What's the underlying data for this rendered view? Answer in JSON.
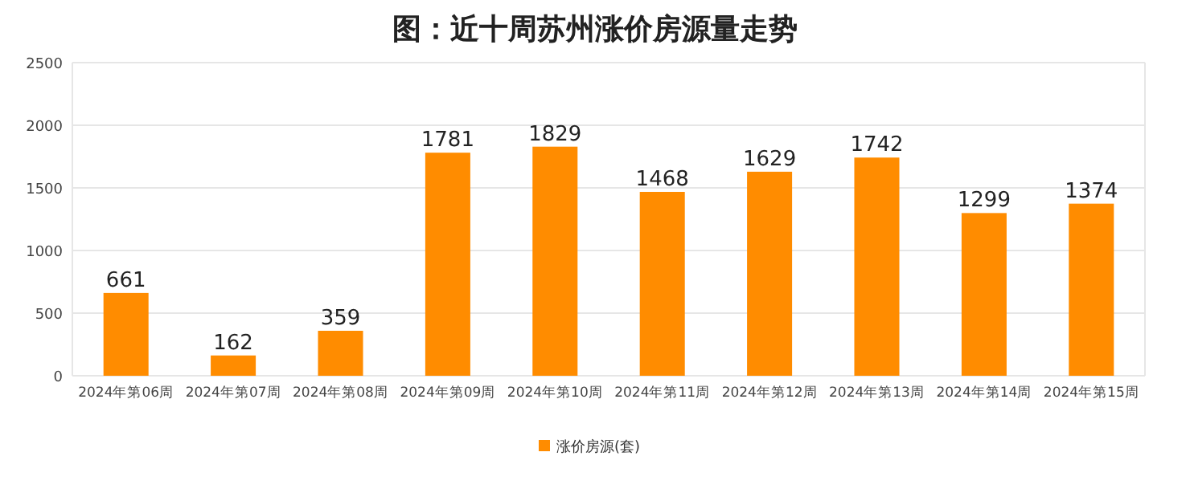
{
  "chart_data": {
    "type": "bar",
    "title": "图：近十周苏州涨价房源量走势",
    "categories": [
      "2024年第06周",
      "2024年第07周",
      "2024年第08周",
      "2024年第09周",
      "2024年第10周",
      "2024年第11周",
      "2024年第12周",
      "2024年第13周",
      "2024年第14周",
      "2024年第15周"
    ],
    "series": [
      {
        "name": "涨价房源(套)",
        "color": "#ff8c00",
        "values": [
          661,
          162,
          359,
          1781,
          1829,
          1468,
          1629,
          1742,
          1299,
          1374
        ]
      }
    ],
    "ylim": [
      0,
      2500
    ],
    "yticks": [
      0,
      500,
      1000,
      1500,
      2000,
      2500
    ],
    "grid": "y",
    "legend": "bottom",
    "data_labels": true
  }
}
